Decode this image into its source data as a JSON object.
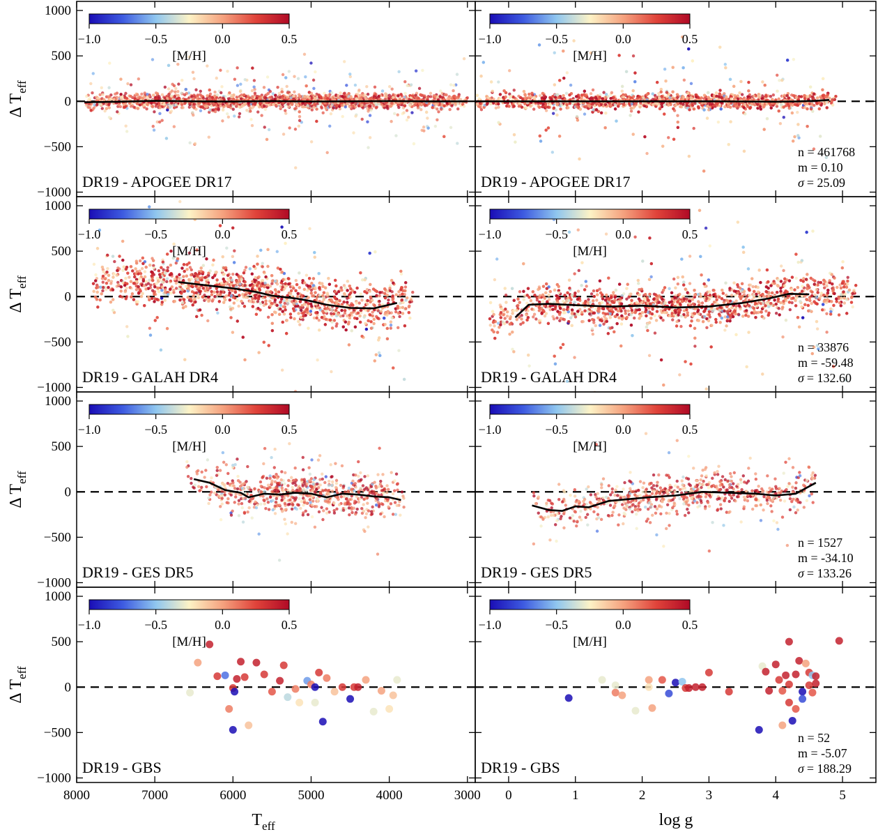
{
  "figure": {
    "ylabel": "Δ T",
    "ylabel_sub": "eff",
    "xlabel_left": "T",
    "xlabel_left_sub": "eff",
    "xlabel_right": "log g",
    "colorbar_label": "[M/H]",
    "colorbar_ticks": [
      "−1.0",
      "−0.5",
      "0.0",
      "0.5"
    ],
    "colormap": [
      "#1a0db5",
      "#3d5ae0",
      "#8fc6ef",
      "#fdf3c6",
      "#f5a27f",
      "#e0433a",
      "#b00a26"
    ],
    "line_color": "#000000",
    "dash_color": "#000000"
  },
  "chart_data": {
    "type": "scatter",
    "colorbar": {
      "label": "[M/H]",
      "range": [
        -1.0,
        0.5
      ]
    },
    "columns": [
      {
        "xlabel": "Teff",
        "xlim": [
          8000,
          2900
        ],
        "xticks": [
          8000,
          7000,
          6000,
          5000,
          4000,
          3000
        ]
      },
      {
        "xlabel": "log g",
        "xlim": [
          -0.5,
          5.5
        ],
        "xticks": [
          0,
          1,
          2,
          3,
          4,
          5
        ]
      }
    ],
    "ylim": [
      -1050,
      1100
    ],
    "yticks": [
      -1000,
      -500,
      0,
      500,
      1000
    ],
    "panels": [
      {
        "label": "DR19 - APOGEE DR17",
        "stats": {
          "n": "n = 461768",
          "m": "m = 0.10",
          "sigma_label": "σ",
          "sigma": "= 25.09"
        },
        "dense": true,
        "left": {
          "x_range": [
            7900,
            3000
          ],
          "y_scatter": 40,
          "y_tail": 220,
          "trend_x": [
            7900,
            7500,
            7000,
            6500,
            6000,
            5500,
            5000,
            4500,
            4000,
            3500,
            3000
          ],
          "trend_y": [
            -10,
            -5,
            5,
            0,
            -3,
            2,
            -2,
            0,
            3,
            0,
            0
          ]
        },
        "right": {
          "x_range": [
            -0.5,
            4.9
          ],
          "y_scatter": 40,
          "y_tail": 300,
          "trend_x": [
            -0.5,
            0.5,
            1.5,
            2.5,
            3.0,
            3.5,
            4.0,
            4.3,
            4.6,
            4.8
          ],
          "trend_y": [
            0,
            0,
            0,
            0,
            0,
            -2,
            -4,
            -2,
            5,
            15
          ]
        }
      },
      {
        "label": "DR19 - GALAH DR4",
        "stats": {
          "n": "n = 33876",
          "m": "m = -59.48",
          "sigma_label": "σ",
          "sigma": "= 132.60"
        },
        "dense": true,
        "left": {
          "x_range": [
            7800,
            3700
          ],
          "y_scatter": 120,
          "y_tail": 400,
          "trend_x": [
            6700,
            6500,
            6200,
            6000,
            5700,
            5500,
            5200,
            5000,
            4800,
            4500,
            4200,
            3900
          ],
          "trend_y": [
            160,
            140,
            110,
            90,
            50,
            10,
            -20,
            -50,
            -90,
            -125,
            -130,
            -70
          ]
        },
        "right": {
          "x_range": [
            -0.3,
            5.2
          ],
          "y_scatter": 100,
          "y_tail": 450,
          "trend_x": [
            0.1,
            0.3,
            0.6,
            1.0,
            1.5,
            2.0,
            2.5,
            3.0,
            3.5,
            3.9,
            4.2,
            4.5
          ],
          "trend_y": [
            -230,
            -90,
            -80,
            -95,
            -110,
            -100,
            -120,
            -110,
            -70,
            -20,
            30,
            25
          ]
        }
      },
      {
        "label": "DR19 - GES DR5",
        "stats": {
          "n": "n = 1527",
          "m": "m = -34.10",
          "sigma_label": "σ",
          "sigma": "= 133.26"
        },
        "dense": false,
        "left": {
          "x_range": [
            6600,
            3800
          ],
          "y_scatter": 110,
          "y_tail": 280,
          "trend_x": [
            6500,
            6300,
            6100,
            5900,
            5800,
            5600,
            5400,
            5200,
            5000,
            4800,
            4600,
            4400,
            4200,
            4000,
            3850
          ],
          "trend_y": [
            140,
            100,
            20,
            -10,
            -60,
            -20,
            -30,
            -10,
            -20,
            -60,
            -20,
            -30,
            -50,
            -60,
            -90
          ]
        },
        "right": {
          "x_range": [
            0.3,
            4.6
          ],
          "y_scatter": 100,
          "y_tail": 280,
          "trend_x": [
            0.35,
            0.6,
            0.8,
            1.0,
            1.2,
            1.5,
            1.8,
            2.1,
            2.5,
            2.9,
            3.3,
            3.7,
            4.0,
            4.3,
            4.6
          ],
          "trend_y": [
            -150,
            -200,
            -210,
            -160,
            -170,
            -100,
            -80,
            -60,
            -40,
            0,
            -10,
            -20,
            -40,
            -20,
            100
          ]
        }
      },
      {
        "label": "DR19 - GBS",
        "stats": {
          "n": "n = 52",
          "m": "m = -5.07",
          "sigma_label": "σ",
          "sigma": "= 188.29"
        },
        "dense": false,
        "left": {
          "points": [
            [
              6550,
              -60,
              -0.3
            ],
            [
              6450,
              270,
              0.0
            ],
            [
              6300,
              470,
              0.4
            ],
            [
              6200,
              120,
              0.3
            ],
            [
              6100,
              130,
              -0.7
            ],
            [
              6050,
              -240,
              0.1
            ],
            [
              6000,
              -10,
              0.3
            ],
            [
              5980,
              -50,
              -1.0
            ],
            [
              6000,
              -470,
              -1.0
            ],
            [
              5950,
              90,
              0.4
            ],
            [
              5900,
              280,
              0.4
            ],
            [
              5850,
              110,
              0.3
            ],
            [
              5800,
              -420,
              -0.1
            ],
            [
              5700,
              270,
              0.4
            ],
            [
              5600,
              140,
              0.3
            ],
            [
              5500,
              -50,
              0.2
            ],
            [
              5400,
              70,
              0.4
            ],
            [
              5350,
              240,
              0.3
            ],
            [
              5300,
              -110,
              -0.4
            ],
            [
              5200,
              -20,
              0.1
            ],
            [
              5150,
              -170,
              -0.2
            ],
            [
              5050,
              70,
              -0.6
            ],
            [
              5000,
              30,
              0.1
            ],
            [
              4950,
              0,
              -1.0
            ],
            [
              4950,
              -170,
              -0.3
            ],
            [
              4900,
              160,
              0.3
            ],
            [
              4850,
              -380,
              -1.0
            ],
            [
              4800,
              100,
              0.1
            ],
            [
              4700,
              -50,
              -0.1
            ],
            [
              4600,
              0,
              0.3
            ],
            [
              4500,
              -130,
              -1.0
            ],
            [
              4450,
              0,
              0.3
            ],
            [
              4400,
              0,
              0.4
            ],
            [
              4300,
              80,
              0.0
            ],
            [
              4200,
              -270,
              -0.3
            ],
            [
              4100,
              -40,
              0.0
            ],
            [
              4000,
              -240,
              -0.2
            ],
            [
              3950,
              -90,
              -0.1
            ],
            [
              3900,
              80,
              -0.3
            ]
          ]
        },
        "right": {
          "points": [
            [
              0.9,
              -120,
              -1.0
            ],
            [
              1.4,
              80,
              -0.3
            ],
            [
              1.6,
              20,
              -0.3
            ],
            [
              1.6,
              -60,
              0.1
            ],
            [
              1.7,
              -90,
              0.0
            ],
            [
              1.9,
              -260,
              -0.3
            ],
            [
              2.1,
              80,
              0.0
            ],
            [
              2.1,
              0,
              -0.2
            ],
            [
              2.15,
              -230,
              0.0
            ],
            [
              2.3,
              80,
              0.2
            ],
            [
              2.4,
              -70,
              -0.8
            ],
            [
              2.5,
              50,
              -1.0
            ],
            [
              2.6,
              60,
              -0.5
            ],
            [
              2.65,
              -10,
              0.3
            ],
            [
              2.7,
              -10,
              0.4
            ],
            [
              2.8,
              0,
              0.4
            ],
            [
              2.9,
              0,
              0.4
            ],
            [
              3.0,
              160,
              0.3
            ],
            [
              3.3,
              -50,
              0.3
            ],
            [
              3.75,
              -470,
              -1.0
            ],
            [
              3.8,
              230,
              -0.3
            ],
            [
              3.85,
              170,
              0.4
            ],
            [
              3.9,
              -40,
              0.4
            ],
            [
              4.0,
              250,
              0.4
            ],
            [
              4.05,
              80,
              0.3
            ],
            [
              4.1,
              -40,
              0.2
            ],
            [
              4.1,
              -420,
              0.0
            ],
            [
              4.15,
              130,
              0.4
            ],
            [
              4.2,
              30,
              0.3
            ],
            [
              4.2,
              -170,
              0.3
            ],
            [
              4.2,
              500,
              0.4
            ],
            [
              4.25,
              -370,
              -1.0
            ],
            [
              4.3,
              140,
              0.4
            ],
            [
              4.3,
              -240,
              0.2
            ],
            [
              4.35,
              290,
              0.4
            ],
            [
              4.4,
              -50,
              -1.0
            ],
            [
              4.4,
              -130,
              -0.8
            ],
            [
              4.45,
              260,
              0.0
            ],
            [
              4.5,
              160,
              0.3
            ],
            [
              4.5,
              20,
              0.3
            ],
            [
              4.55,
              130,
              -0.5
            ],
            [
              4.55,
              -60,
              0.2
            ],
            [
              4.6,
              120,
              0.4
            ],
            [
              4.6,
              40,
              0.4
            ],
            [
              4.95,
              510,
              0.4
            ]
          ]
        }
      }
    ]
  }
}
